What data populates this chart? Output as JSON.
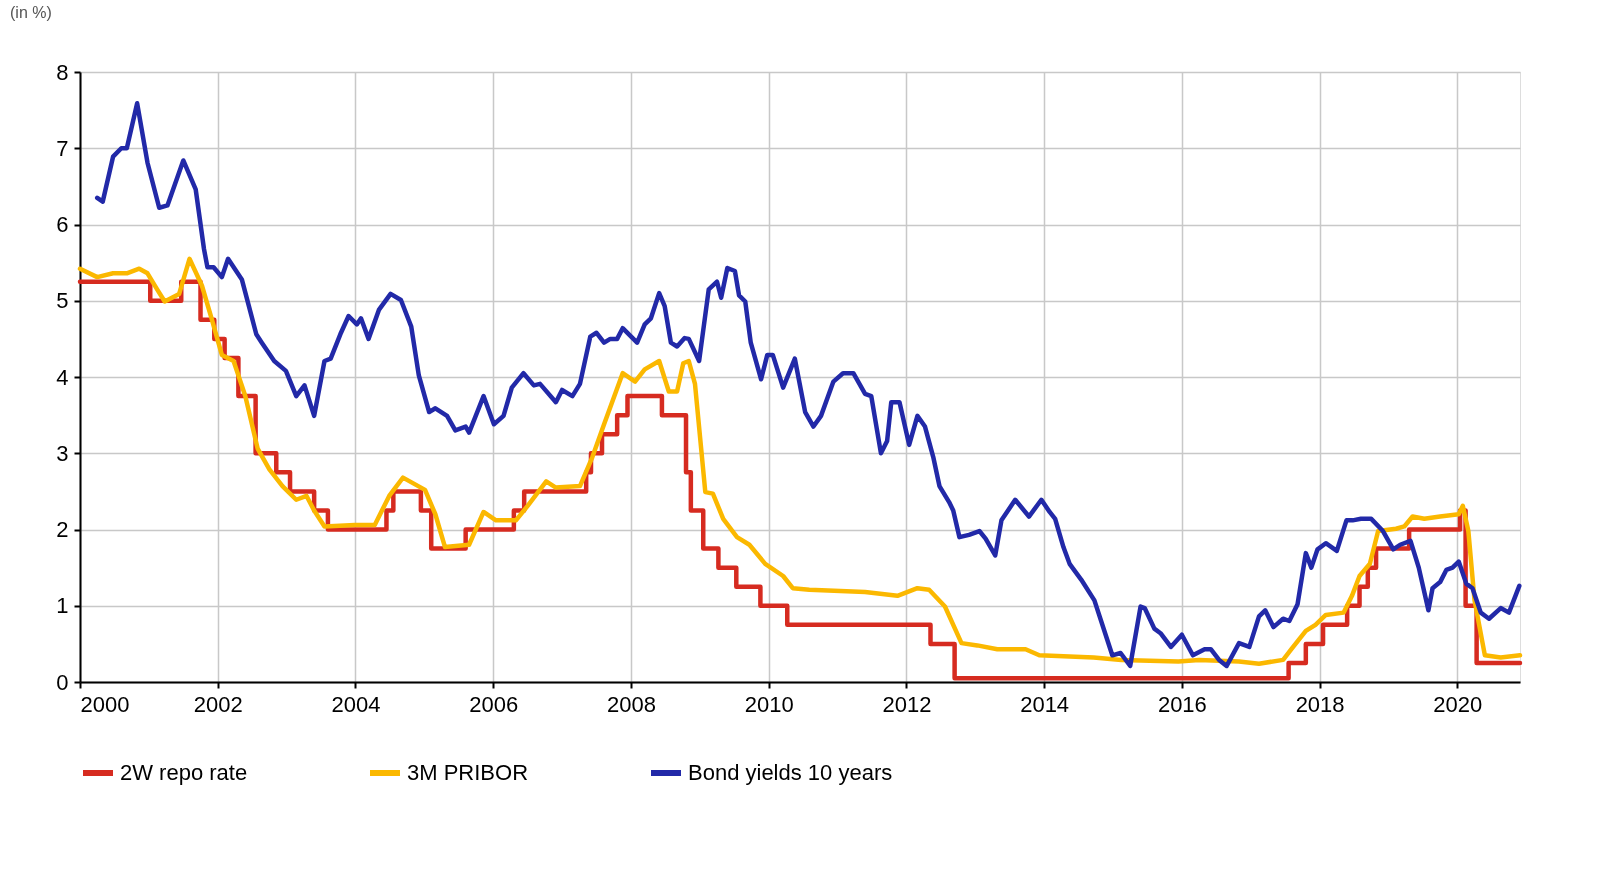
{
  "chart_data": {
    "type": "line",
    "annotations": [
      "(in %)"
    ],
    "xlim": [
      2000,
      2020.91
    ],
    "xticks": [
      2000,
      2002,
      2004,
      2006,
      2008,
      2010,
      2012,
      2014,
      2016,
      2018,
      2020
    ],
    "ylim": [
      0,
      8
    ],
    "yticks": [
      0,
      1,
      2,
      3,
      4,
      5,
      6,
      7,
      8
    ],
    "grid": true,
    "legend": "bottom",
    "line_style": "solid",
    "series": [
      {
        "name": "2W repo rate",
        "color": "#d62b20",
        "type": "step",
        "x": [
          2000.0,
          2001.02,
          2001.47,
          2001.75,
          2001.95,
          2002.1,
          2002.3,
          2002.55,
          2002.85,
          2003.05,
          2003.4,
          2003.6,
          2004.45,
          2004.55,
          2004.95,
          2005.1,
          2005.6,
          2006.3,
          2006.45,
          2007.35,
          2007.42,
          2007.58,
          2007.8,
          2007.95,
          2008.45,
          2008.8,
          2008.87,
          2009.05,
          2009.27,
          2009.53,
          2009.88,
          2010.27,
          2012.35,
          2012.7,
          2017.55,
          2017.8,
          2018.05,
          2018.4,
          2018.58,
          2018.7,
          2018.82,
          2019.3,
          2020.04,
          2020.12,
          2020.28,
          2020.91
        ],
        "values": [
          5.25,
          5.0,
          5.25,
          4.75,
          4.5,
          4.25,
          3.75,
          3.0,
          2.75,
          2.5,
          2.25,
          2.0,
          2.25,
          2.5,
          2.25,
          1.75,
          2.0,
          2.25,
          2.5,
          2.75,
          3.0,
          3.25,
          3.5,
          3.75,
          3.5,
          2.75,
          2.25,
          1.75,
          1.5,
          1.25,
          1.0,
          0.75,
          0.5,
          0.05,
          0.25,
          0.5,
          0.75,
          1.0,
          1.25,
          1.5,
          1.75,
          2.0,
          2.25,
          1.0,
          0.25,
          0.25
        ]
      },
      {
        "name": "3M PRIBOR",
        "color": "#fbb800",
        "x": [
          2000.0,
          2000.25,
          2000.48,
          2000.68,
          2000.86,
          2000.98,
          2001.12,
          2001.23,
          2001.44,
          2001.59,
          2001.77,
          2001.91,
          2002.06,
          2002.23,
          2002.4,
          2002.58,
          2002.75,
          2002.94,
          2003.14,
          2003.29,
          2003.4,
          2003.55,
          2003.99,
          2004.28,
          2004.49,
          2004.69,
          2005.01,
          2005.16,
          2005.3,
          2005.65,
          2005.86,
          2006.04,
          2006.33,
          2006.5,
          2006.77,
          2006.91,
          2007.26,
          2007.44,
          2007.61,
          2007.88,
          2008.06,
          2008.2,
          2008.41,
          2008.55,
          2008.67,
          2008.76,
          2008.84,
          2008.93,
          2009.08,
          2009.19,
          2009.34,
          2009.54,
          2009.72,
          2009.95,
          2010.21,
          2010.35,
          2010.59,
          2011.4,
          2011.87,
          2012.16,
          2012.33,
          2012.56,
          2012.8,
          2013.03,
          2013.32,
          2013.73,
          2013.93,
          2014.72,
          2015.12,
          2015.95,
          2016.25,
          2016.83,
          2017.12,
          2017.47,
          2017.59,
          2017.8,
          2017.94,
          2018.09,
          2018.35,
          2018.47,
          2018.58,
          2018.73,
          2018.85,
          2019.11,
          2019.23,
          2019.35,
          2019.52,
          2019.75,
          2020.02,
          2020.08,
          2020.16,
          2020.25,
          2020.4,
          2020.63,
          2020.91
        ],
        "values": [
          5.42,
          5.31,
          5.36,
          5.36,
          5.42,
          5.36,
          5.15,
          4.99,
          5.09,
          5.55,
          5.2,
          4.77,
          4.29,
          4.21,
          3.75,
          3.06,
          2.79,
          2.57,
          2.39,
          2.44,
          2.25,
          2.04,
          2.06,
          2.06,
          2.44,
          2.68,
          2.52,
          2.2,
          1.77,
          1.8,
          2.23,
          2.12,
          2.12,
          2.31,
          2.63,
          2.55,
          2.57,
          2.95,
          3.38,
          4.05,
          3.94,
          4.1,
          4.21,
          3.81,
          3.81,
          4.18,
          4.21,
          3.91,
          2.49,
          2.47,
          2.14,
          1.9,
          1.8,
          1.55,
          1.39,
          1.23,
          1.21,
          1.18,
          1.13,
          1.23,
          1.21,
          0.99,
          0.51,
          0.48,
          0.43,
          0.43,
          0.35,
          0.32,
          0.29,
          0.27,
          0.29,
          0.27,
          0.24,
          0.29,
          0.43,
          0.67,
          0.75,
          0.88,
          0.91,
          1.13,
          1.39,
          1.55,
          1.98,
          2.01,
          2.04,
          2.17,
          2.14,
          2.17,
          2.2,
          2.31,
          1.98,
          1.07,
          0.35,
          0.32,
          0.35
        ]
      },
      {
        "name": "Bond yields 10 years",
        "color": "#2229a8",
        "x": [
          2000.25,
          2000.33,
          2000.48,
          2000.6,
          2000.68,
          2000.83,
          2000.98,
          2001.15,
          2001.27,
          2001.5,
          2001.68,
          2001.8,
          2001.85,
          2001.94,
          2002.06,
          2002.15,
          2002.35,
          2002.56,
          2002.64,
          2002.82,
          2002.99,
          2003.14,
          2003.26,
          2003.4,
          2003.55,
          2003.64,
          2003.78,
          2003.9,
          2004.02,
          2004.08,
          2004.19,
          2004.34,
          2004.51,
          2004.66,
          2004.81,
          2004.92,
          2005.07,
          2005.16,
          2005.33,
          2005.45,
          2005.6,
          2005.65,
          2005.86,
          2006.01,
          2006.15,
          2006.27,
          2006.44,
          2006.59,
          2006.68,
          2006.91,
          2007.0,
          2007.15,
          2007.26,
          2007.41,
          2007.5,
          2007.61,
          2007.7,
          2007.8,
          2007.88,
          2008.09,
          2008.2,
          2008.29,
          2008.41,
          2008.49,
          2008.58,
          2008.67,
          2008.78,
          2008.84,
          2008.99,
          2009.13,
          2009.25,
          2009.31,
          2009.4,
          2009.51,
          2009.57,
          2009.66,
          2009.74,
          2009.89,
          2009.98,
          2010.06,
          2010.21,
          2010.38,
          2010.53,
          2010.65,
          2010.76,
          2010.94,
          2011.08,
          2011.23,
          2011.4,
          2011.49,
          2011.63,
          2011.72,
          2011.78,
          2011.9,
          2012.04,
          2012.16,
          2012.27,
          2012.39,
          2012.48,
          2012.62,
          2012.68,
          2012.77,
          2012.91,
          2013.06,
          2013.15,
          2013.29,
          2013.38,
          2013.58,
          2013.78,
          2013.96,
          2014.08,
          2014.16,
          2014.28,
          2014.37,
          2014.54,
          2014.73,
          2014.99,
          2015.11,
          2015.25,
          2015.4,
          2015.46,
          2015.6,
          2015.69,
          2015.84,
          2016.0,
          2016.16,
          2016.33,
          2016.42,
          2016.54,
          2016.65,
          2016.83,
          2016.98,
          2017.12,
          2017.21,
          2017.33,
          2017.47,
          2017.56,
          2017.68,
          2017.8,
          2017.88,
          2017.97,
          2018.09,
          2018.25,
          2018.39,
          2018.48,
          2018.6,
          2018.75,
          2018.92,
          2019.07,
          2019.17,
          2019.32,
          2019.44,
          2019.58,
          2019.64,
          2019.75,
          2019.84,
          2019.93,
          2020.02,
          2020.13,
          2020.22,
          2020.34,
          2020.46,
          2020.63,
          2020.75,
          2020.9
        ],
        "values": [
          6.35,
          6.3,
          6.89,
          7.0,
          7.0,
          7.59,
          6.81,
          6.22,
          6.25,
          6.84,
          6.46,
          5.68,
          5.44,
          5.44,
          5.31,
          5.55,
          5.28,
          4.56,
          4.45,
          4.21,
          4.08,
          3.75,
          3.89,
          3.49,
          4.21,
          4.24,
          4.56,
          4.8,
          4.69,
          4.77,
          4.5,
          4.88,
          5.09,
          5.01,
          4.66,
          4.02,
          3.54,
          3.59,
          3.49,
          3.3,
          3.35,
          3.27,
          3.75,
          3.38,
          3.49,
          3.86,
          4.05,
          3.89,
          3.91,
          3.67,
          3.83,
          3.75,
          3.91,
          4.53,
          4.58,
          4.45,
          4.5,
          4.5,
          4.64,
          4.45,
          4.69,
          4.77,
          5.1,
          4.93,
          4.45,
          4.4,
          4.51,
          4.5,
          4.21,
          5.15,
          5.25,
          5.04,
          5.43,
          5.39,
          5.07,
          4.99,
          4.45,
          3.97,
          4.29,
          4.29,
          3.86,
          4.24,
          3.54,
          3.35,
          3.49,
          3.94,
          4.05,
          4.05,
          3.78,
          3.75,
          3.0,
          3.16,
          3.67,
          3.67,
          3.11,
          3.49,
          3.35,
          2.95,
          2.57,
          2.36,
          2.25,
          1.9,
          1.93,
          1.98,
          1.88,
          1.66,
          2.12,
          2.39,
          2.17,
          2.39,
          2.23,
          2.14,
          1.77,
          1.55,
          1.34,
          1.07,
          0.35,
          0.38,
          0.21,
          0.99,
          0.97,
          0.7,
          0.64,
          0.46,
          0.62,
          0.35,
          0.43,
          0.43,
          0.29,
          0.21,
          0.51,
          0.46,
          0.86,
          0.94,
          0.72,
          0.83,
          0.8,
          1.02,
          1.69,
          1.5,
          1.74,
          1.82,
          1.72,
          2.12,
          2.12,
          2.14,
          2.14,
          1.98,
          1.74,
          1.8,
          1.85,
          1.5,
          0.94,
          1.23,
          1.31,
          1.47,
          1.5,
          1.58,
          1.29,
          1.23,
          0.91,
          0.83,
          0.97,
          0.91,
          1.26
        ]
      }
    ]
  }
}
